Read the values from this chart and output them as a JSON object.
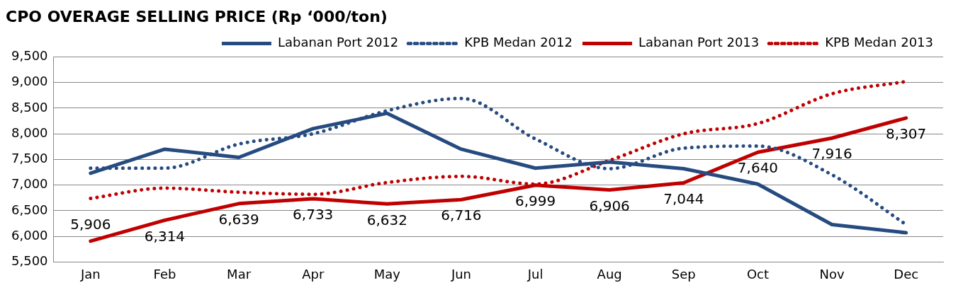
{
  "chart_data": {
    "type": "line",
    "title": "CPO OVERAGE SELLING PRICE (Rp ‘000/ton)",
    "categories": [
      "Jan",
      "Feb",
      "Mar",
      "Apr",
      "May",
      "Jun",
      "Jul",
      "Aug",
      "Sep",
      "Oct",
      "Nov",
      "Dec"
    ],
    "series": [
      {
        "name": "Labanan Port 2012",
        "color": "#264b80",
        "line_style": "solid",
        "values": [
          7230,
          7700,
          7540,
          8100,
          8400,
          7700,
          7330,
          7450,
          7320,
          7020,
          6230,
          6070
        ]
      },
      {
        "name": "KPB Medan 2012",
        "color": "#264b80",
        "line_style": "dotted",
        "values": [
          7330,
          7330,
          7800,
          8000,
          8450,
          8690,
          7900,
          7320,
          7720,
          7760,
          7200,
          6230
        ]
      },
      {
        "name": "Labanan Port 2013",
        "color": "#c00000",
        "line_style": "solid",
        "values": [
          5906,
          6314,
          6639,
          6733,
          6632,
          6716,
          6999,
          6906,
          7044,
          7640,
          7916,
          8307
        ],
        "value_labels": [
          "5,906",
          "6,314",
          "6,639",
          "6,733",
          "6,632",
          "6,716",
          "6,999",
          "6,906",
          "7,044",
          "7,640",
          "7,916",
          "8,307"
        ]
      },
      {
        "name": "KPB Medan 2013",
        "color": "#c00000",
        "line_style": "dotted",
        "values": [
          6740,
          6940,
          6860,
          6820,
          7050,
          7170,
          7020,
          7480,
          8000,
          8200,
          8780,
          9020
        ]
      }
    ],
    "ylim": [
      5500,
      9500
    ],
    "yticks": [
      {
        "value": 5500,
        "label": "5,500"
      },
      {
        "value": 6000,
        "label": "6,000"
      },
      {
        "value": 6500,
        "label": "6,500"
      },
      {
        "value": 7000,
        "label": "7,000"
      },
      {
        "value": 7500,
        "label": "7,500"
      },
      {
        "value": 8000,
        "label": "8,000"
      },
      {
        "value": 8500,
        "label": "8,500"
      },
      {
        "value": 9000,
        "label": "9,000"
      },
      {
        "value": 9500,
        "label": "9,500"
      }
    ],
    "grid": "y",
    "legend": "top right",
    "marker": "none"
  }
}
